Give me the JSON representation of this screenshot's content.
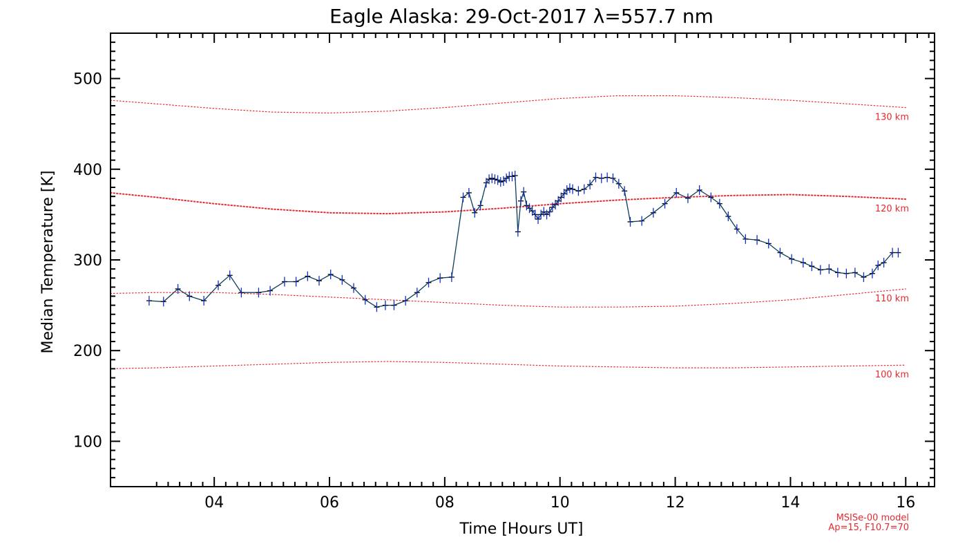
{
  "chart_data": {
    "type": "line",
    "title": "Eagle Alaska: 29-Oct-2017 λ=557.7 nm",
    "xlabel": "Time [Hours UT]",
    "ylabel": "Median Temperature [K]",
    "xlim": [
      2.2,
      16.5
    ],
    "ylim": [
      50,
      550
    ],
    "x_ticks": [
      4,
      6,
      8,
      10,
      12,
      14,
      16
    ],
    "x_tick_labels": [
      "04",
      "06",
      "08",
      "10",
      "12",
      "14",
      "16"
    ],
    "y_ticks": [
      100,
      200,
      300,
      400,
      500
    ],
    "y_tick_labels": [
      "100",
      "200",
      "300",
      "400",
      "500"
    ],
    "grid": false,
    "series": [
      {
        "color": "#0b3c5d",
        "marker": "plus",
        "x": [
          2.87,
          3.12,
          3.37,
          3.57,
          3.82,
          4.07,
          4.27,
          4.47,
          4.77,
          4.97,
          5.22,
          5.42,
          5.62,
          5.82,
          6.02,
          6.22,
          6.42,
          6.62,
          6.82,
          6.97,
          7.12,
          7.32,
          7.52,
          7.72,
          7.92,
          8.12,
          8.32,
          8.42,
          8.52,
          8.62,
          8.72,
          8.77,
          8.82,
          8.87,
          8.92,
          8.97,
          9.02,
          9.07,
          9.12,
          9.17,
          9.22,
          9.27,
          9.32,
          9.37,
          9.42,
          9.47,
          9.52,
          9.57,
          9.62,
          9.67,
          9.72,
          9.77,
          9.82,
          9.87,
          9.92,
          9.97,
          10.02,
          10.07,
          10.12,
          10.17,
          10.22,
          10.32,
          10.42,
          10.52,
          10.62,
          10.72,
          10.82,
          10.92,
          11.02,
          11.12,
          11.22,
          11.42,
          11.62,
          11.82,
          12.02,
          12.22,
          12.42,
          12.62,
          12.77,
          12.92,
          13.07,
          13.22,
          13.42,
          13.62,
          13.82,
          14.02,
          14.22,
          14.37,
          14.52,
          14.67,
          14.82,
          14.97,
          15.12,
          15.27,
          15.42,
          15.52,
          15.62,
          15.77,
          15.87
        ],
        "values": [
          255,
          254,
          268,
          260,
          255,
          272,
          283,
          264,
          264,
          266,
          276,
          276,
          282,
          277,
          284,
          278,
          269,
          256,
          248,
          250,
          250,
          255,
          264,
          275,
          280,
          281,
          369,
          374,
          352,
          360,
          385,
          389,
          390,
          389,
          388,
          386,
          387,
          390,
          392,
          392,
          393,
          331,
          365,
          375,
          360,
          357,
          354,
          350,
          345,
          350,
          353,
          350,
          353,
          358,
          361,
          365,
          369,
          373,
          377,
          379,
          378,
          376,
          378,
          383,
          391,
          390,
          391,
          390,
          384,
          376,
          342,
          343,
          352,
          362,
          374,
          368,
          377,
          369,
          362,
          348,
          334,
          323,
          322,
          318,
          308,
          301,
          297,
          293,
          289,
          290,
          286,
          285,
          286,
          281,
          285,
          294,
          297,
          308,
          308
        ]
      },
      {
        "name": "130 km",
        "color": "#e8282e",
        "style": "dotted",
        "x": [
          2.2,
          3.0,
          4.0,
          5.0,
          6.0,
          7.0,
          8.0,
          9.0,
          10.0,
          11.0,
          12.0,
          13.0,
          14.0,
          15.0,
          16.0
        ],
        "values": [
          476,
          472,
          467,
          463,
          462,
          464,
          468,
          473,
          478,
          481,
          481,
          479,
          476,
          472,
          468
        ]
      },
      {
        "name": "120 km",
        "color": "#e8282e",
        "style": "dotted",
        "x": [
          2.2,
          3.0,
          4.0,
          5.0,
          6.0,
          7.0,
          8.0,
          9.0,
          10.0,
          11.0,
          12.0,
          13.0,
          14.0,
          15.0,
          16.0
        ],
        "values": [
          374,
          369,
          362,
          356,
          352,
          351,
          353,
          357,
          362,
          366,
          369,
          371,
          372,
          370,
          367
        ]
      },
      {
        "name": "110 km",
        "color": "#e8282e",
        "style": "dotted",
        "x": [
          2.2,
          3.0,
          4.0,
          5.0,
          6.0,
          7.0,
          8.0,
          9.0,
          10.0,
          11.0,
          12.0,
          13.0,
          14.0,
          15.0,
          16.0
        ],
        "values": [
          263,
          264,
          264,
          262,
          259,
          256,
          253,
          250,
          248,
          248,
          249,
          252,
          256,
          262,
          268
        ]
      },
      {
        "name": "100 km",
        "color": "#e8282e",
        "style": "dotted",
        "x": [
          2.2,
          3.0,
          4.0,
          5.0,
          6.0,
          7.0,
          8.0,
          9.0,
          10.0,
          11.0,
          12.0,
          13.0,
          14.0,
          15.0,
          16.0
        ],
        "values": [
          180,
          181,
          183,
          185,
          187,
          188,
          187,
          185,
          183,
          182,
          181,
          181,
          182,
          183,
          184
        ]
      }
    ],
    "annotations": [
      "MSISe-00 model",
      "Ap=15, F10.7=70"
    ]
  }
}
